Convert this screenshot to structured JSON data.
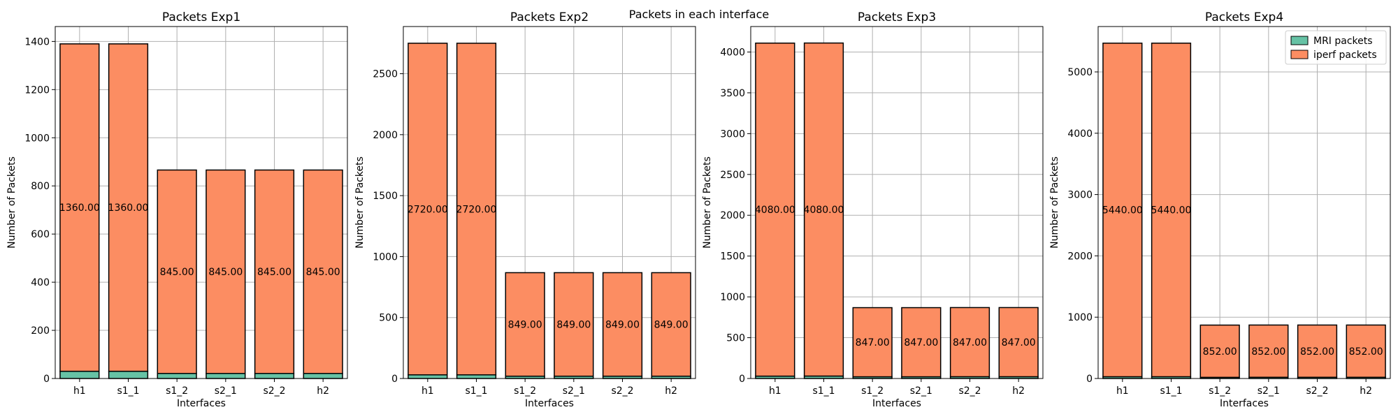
{
  "figure": {
    "suptitle": "Packets in each interface"
  },
  "legend": {
    "placement": "top-right"
  },
  "colors": {
    "mri": "#66c2a5",
    "iperf": "#fc8d62"
  },
  "chart_data": [
    {
      "type": "bar",
      "stacked": true,
      "title": "Packets Exp1",
      "xlabel": "Interfaces",
      "ylabel": "Number of Packets",
      "categories": [
        "h1",
        "s1_1",
        "s1_2",
        "s2_1",
        "s2_2",
        "h2"
      ],
      "yticks": [
        0,
        200,
        400,
        600,
        800,
        1000,
        1200,
        1400
      ],
      "ylim": [
        0,
        1462
      ],
      "grid": true,
      "series": [
        {
          "name": "MRI packets",
          "values": [
            30,
            30,
            21,
            21,
            21,
            21
          ]
        },
        {
          "name": "iperf packets",
          "values": [
            1360,
            1360,
            845,
            845,
            845,
            845
          ]
        }
      ]
    },
    {
      "type": "bar",
      "stacked": true,
      "title": "Packets Exp2",
      "xlabel": "Interfaces",
      "ylabel": "Number of Packets",
      "categories": [
        "h1",
        "s1_1",
        "s1_2",
        "s2_1",
        "s2_2",
        "h2"
      ],
      "yticks": [
        0,
        500,
        1000,
        1500,
        2000,
        2500
      ],
      "ylim": [
        0,
        2887
      ],
      "grid": true,
      "series": [
        {
          "name": "MRI packets",
          "values": [
            30,
            30,
            19,
            19,
            19,
            19
          ]
        },
        {
          "name": "iperf packets",
          "values": [
            2720,
            2720,
            849,
            849,
            849,
            849
          ]
        }
      ]
    },
    {
      "type": "bar",
      "stacked": true,
      "title": "Packets Exp3",
      "xlabel": "Interfaces",
      "ylabel": "Number of Packets",
      "categories": [
        "h1",
        "s1_1",
        "s1_2",
        "s2_1",
        "s2_2",
        "h2"
      ],
      "yticks": [
        0,
        500,
        1000,
        1500,
        2000,
        2500,
        3000,
        3500,
        4000
      ],
      "ylim": [
        0,
        4312
      ],
      "grid": true,
      "series": [
        {
          "name": "MRI packets",
          "values": [
            29,
            30,
            21,
            21,
            22,
            22
          ]
        },
        {
          "name": "iperf packets",
          "values": [
            4080,
            4080,
            847,
            847,
            847,
            847
          ]
        }
      ]
    },
    {
      "type": "bar",
      "stacked": true,
      "title": "Packets Exp4",
      "xlabel": "Interfaces",
      "ylabel": "Number of Packets",
      "categories": [
        "h1",
        "s1_1",
        "s1_2",
        "s2_1",
        "s2_2",
        "h2"
      ],
      "yticks": [
        0,
        1000,
        2000,
        3000,
        4000,
        5000
      ],
      "ylim": [
        0,
        5740
      ],
      "grid": true,
      "series": [
        {
          "name": "MRI packets",
          "values": [
            29,
            29,
            19,
            20,
            20,
            20
          ]
        },
        {
          "name": "iperf packets",
          "values": [
            5440,
            5440,
            852,
            852,
            852,
            852
          ]
        }
      ]
    }
  ]
}
